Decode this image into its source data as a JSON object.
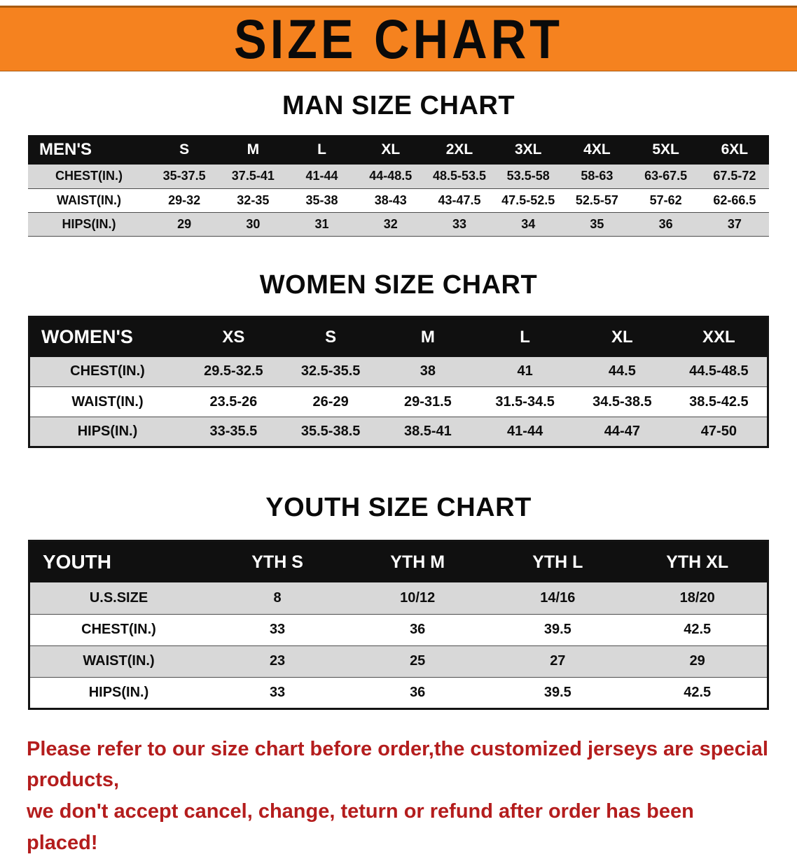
{
  "banner": {
    "title": "SIZE CHART"
  },
  "sections": [
    {
      "id": "men",
      "heading": "MAN SIZE CHART",
      "table": {
        "header": [
          "MEN'S",
          "S",
          "M",
          "L",
          "XL",
          "2XL",
          "3XL",
          "4XL",
          "5XL",
          "6XL"
        ],
        "rows": [
          [
            "CHEST(IN.)",
            "35-37.5",
            "37.5-41",
            "41-44",
            "44-48.5",
            "48.5-53.5",
            "53.5-58",
            "58-63",
            "63-67.5",
            "67.5-72"
          ],
          [
            "WAIST(IN.)",
            "29-32",
            "32-35",
            "35-38",
            "38-43",
            "43-47.5",
            "47.5-52.5",
            "52.5-57",
            "57-62",
            "62-66.5"
          ],
          [
            "HIPS(IN.)",
            "29",
            "30",
            "31",
            "32",
            "33",
            "34",
            "35",
            "36",
            "37"
          ]
        ]
      }
    },
    {
      "id": "women",
      "heading": "WOMEN SIZE CHART",
      "table": {
        "header": [
          "WOMEN'S",
          "XS",
          "S",
          "M",
          "L",
          "XL",
          "XXL"
        ],
        "rows": [
          [
            "CHEST(IN.)",
            "29.5-32.5",
            "32.5-35.5",
            "38",
            "41",
            "44.5",
            "44.5-48.5"
          ],
          [
            "WAIST(IN.)",
            "23.5-26",
            "26-29",
            "29-31.5",
            "31.5-34.5",
            "34.5-38.5",
            "38.5-42.5"
          ],
          [
            "HIPS(IN.)",
            "33-35.5",
            "35.5-38.5",
            "38.5-41",
            "41-44",
            "44-47",
            "47-50"
          ]
        ]
      }
    },
    {
      "id": "youth",
      "heading": "YOUTH SIZE CHART",
      "table": {
        "header": [
          "YOUTH",
          "YTH S",
          "YTH M",
          "YTH L",
          "YTH XL"
        ],
        "rows": [
          [
            "U.S.SIZE",
            "8",
            "10/12",
            "14/16",
            "18/20"
          ],
          [
            "CHEST(IN.)",
            "33",
            "36",
            "39.5",
            "42.5"
          ],
          [
            "WAIST(IN.)",
            "23",
            "25",
            "27",
            "29"
          ],
          [
            "HIPS(IN.)",
            "33",
            "36",
            "39.5",
            "42.5"
          ]
        ]
      }
    }
  ],
  "footer": {
    "line1": "Please refer to our size chart before order,the customized jerseys are special products,",
    "line2": "we don't accept cancel, change, teturn or refund after order has been placed!"
  },
  "colors": {
    "banner_bg": "#f5821f",
    "banner_edge": "#a85a10",
    "table_header_bg": "#101010",
    "row_alt_bg": "#d8d8d8",
    "footer_text": "#b41d1d"
  }
}
